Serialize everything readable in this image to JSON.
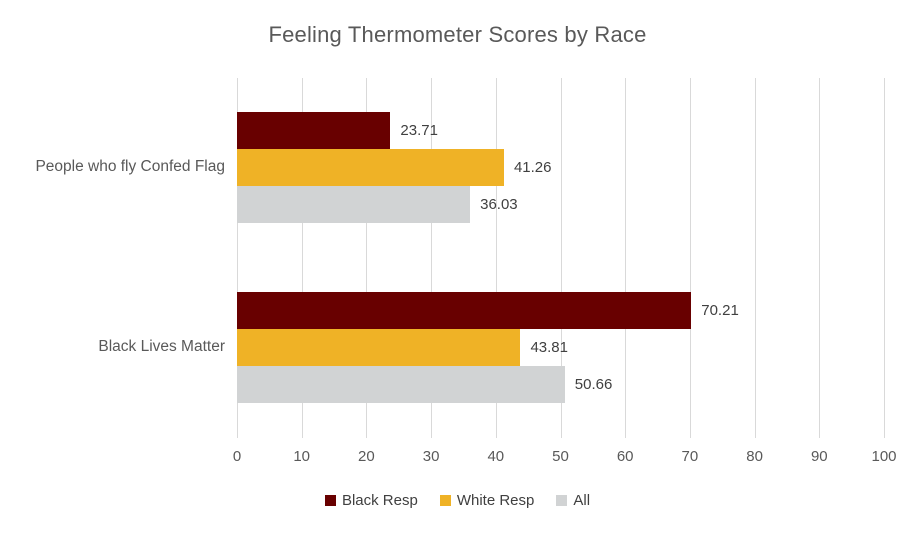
{
  "title": "Feeling Thermometer Scores by Race",
  "colors": {
    "black_resp": "#680000",
    "white_resp": "#efb226",
    "all": "#d1d3d4",
    "gridline": "#d9d9d9",
    "title_text": "#595959",
    "axis_text": "#595959",
    "data_label_text": "#404040",
    "background": "#ffffff"
  },
  "chart_data": {
    "type": "bar",
    "orientation": "horizontal",
    "title": "Feeling Thermometer Scores by Race",
    "categories": [
      "People who fly Confed Flag",
      "Black Lives Matter"
    ],
    "series": [
      {
        "name": "Black Resp",
        "color": "#680000",
        "values": [
          23.71,
          70.21
        ]
      },
      {
        "name": "White Resp",
        "color": "#efb226",
        "values": [
          41.26,
          43.81
        ]
      },
      {
        "name": "All",
        "color": "#d1d3d4",
        "values": [
          36.03,
          50.66
        ]
      }
    ],
    "data_labels": [
      [
        "23.71",
        "70.21"
      ],
      [
        "41.26",
        "43.81"
      ],
      [
        "36.03",
        "50.66"
      ]
    ],
    "xlabel": "",
    "ylabel": "",
    "xlim": [
      0,
      100
    ],
    "xticks": [
      0,
      10,
      20,
      30,
      40,
      50,
      60,
      70,
      80,
      90,
      100
    ],
    "grid": true,
    "legend_position": "bottom",
    "legend_entries": [
      "Black Resp",
      "White Resp",
      "All"
    ]
  }
}
